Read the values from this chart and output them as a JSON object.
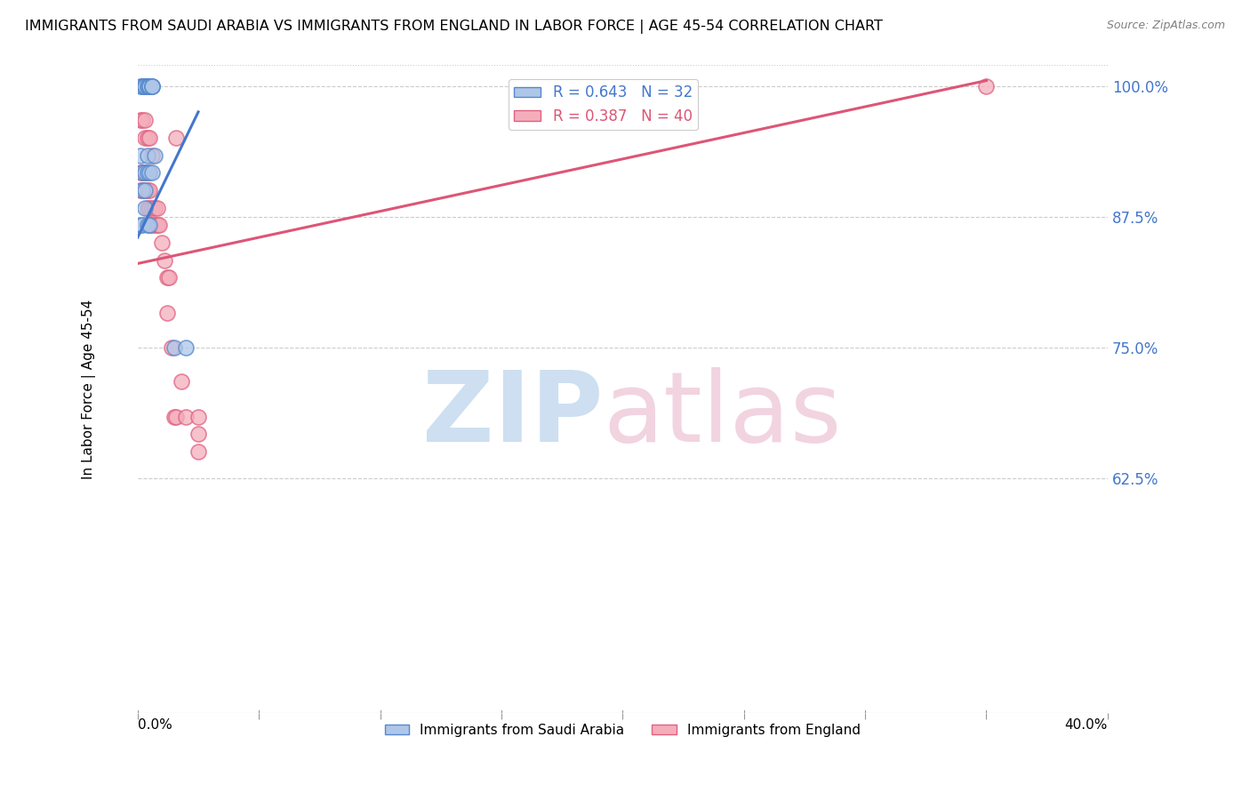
{
  "title": "IMMIGRANTS FROM SAUDI ARABIA VS IMMIGRANTS FROM ENGLAND IN LABOR FORCE | AGE 45-54 CORRELATION CHART",
  "source": "Source: ZipAtlas.com",
  "ylabel": "In Labor Force | Age 45-54",
  "legend_R_blue": "0.643",
  "legend_N_blue": "32",
  "legend_R_pink": "0.387",
  "legend_N_pink": "40",
  "blue_color": "#AEC6E8",
  "pink_color": "#F4AEBB",
  "blue_edge_color": "#5588CC",
  "pink_edge_color": "#E06080",
  "blue_line_color": "#4477CC",
  "pink_line_color": "#DD5577",
  "watermark_zip_color": "#C8DCF0",
  "watermark_atlas_color": "#F0D0DC",
  "blue_scatter": [
    [
      0.001,
      1.0
    ],
    [
      0.002,
      1.0
    ],
    [
      0.002,
      1.0
    ],
    [
      0.003,
      1.0
    ],
    [
      0.003,
      1.0
    ],
    [
      0.003,
      1.0
    ],
    [
      0.004,
      1.0
    ],
    [
      0.004,
      1.0
    ],
    [
      0.005,
      1.0
    ],
    [
      0.005,
      1.0
    ],
    [
      0.005,
      1.0
    ],
    [
      0.005,
      1.0
    ],
    [
      0.006,
      1.0
    ],
    [
      0.006,
      1.0
    ],
    [
      0.006,
      1.0
    ],
    [
      0.001,
      0.933
    ],
    [
      0.002,
      0.917
    ],
    [
      0.002,
      0.9
    ],
    [
      0.003,
      0.917
    ],
    [
      0.003,
      0.9
    ],
    [
      0.004,
      0.933
    ],
    [
      0.004,
      0.917
    ],
    [
      0.005,
      0.917
    ],
    [
      0.006,
      0.917
    ],
    [
      0.007,
      0.933
    ],
    [
      0.001,
      0.867
    ],
    [
      0.002,
      0.867
    ],
    [
      0.003,
      0.883
    ],
    [
      0.004,
      0.867
    ],
    [
      0.005,
      0.867
    ],
    [
      0.015,
      0.75
    ],
    [
      0.02,
      0.75
    ]
  ],
  "pink_scatter": [
    [
      0.001,
      0.967
    ],
    [
      0.002,
      0.967
    ],
    [
      0.003,
      0.967
    ],
    [
      0.003,
      0.95
    ],
    [
      0.004,
      0.95
    ],
    [
      0.005,
      0.95
    ],
    [
      0.001,
      0.917
    ],
    [
      0.002,
      0.917
    ],
    [
      0.003,
      0.917
    ],
    [
      0.001,
      0.9
    ],
    [
      0.002,
      0.9
    ],
    [
      0.003,
      0.9
    ],
    [
      0.004,
      0.9
    ],
    [
      0.005,
      0.9
    ],
    [
      0.004,
      0.883
    ],
    [
      0.005,
      0.883
    ],
    [
      0.006,
      0.883
    ],
    [
      0.007,
      0.883
    ],
    [
      0.008,
      0.883
    ],
    [
      0.005,
      0.867
    ],
    [
      0.006,
      0.867
    ],
    [
      0.007,
      0.867
    ],
    [
      0.008,
      0.867
    ],
    [
      0.009,
      0.867
    ],
    [
      0.01,
      0.85
    ],
    [
      0.011,
      0.833
    ],
    [
      0.012,
      0.817
    ],
    [
      0.013,
      0.817
    ],
    [
      0.012,
      0.783
    ],
    [
      0.014,
      0.75
    ],
    [
      0.015,
      0.683
    ],
    [
      0.016,
      0.683
    ],
    [
      0.018,
      0.717
    ],
    [
      0.02,
      0.683
    ],
    [
      0.006,
      0.933
    ],
    [
      0.025,
      0.667
    ],
    [
      0.025,
      0.65
    ],
    [
      0.016,
      0.95
    ],
    [
      0.025,
      0.683
    ],
    [
      0.35,
      1.0
    ]
  ],
  "blue_line_pts": [
    [
      0.0,
      0.855
    ],
    [
      0.025,
      0.975
    ]
  ],
  "pink_line_pts": [
    [
      0.0,
      0.83
    ],
    [
      0.35,
      1.005
    ]
  ],
  "xlim": [
    0.0,
    0.4
  ],
  "ylim": [
    0.4,
    1.02
  ],
  "ytick_positions": [
    0.625,
    0.75,
    0.875,
    1.0
  ],
  "ytick_labels": [
    "62.5%",
    "75.0%",
    "87.5%",
    "100.0%"
  ],
  "xtick_positions": [
    0.0,
    0.05,
    0.1,
    0.15,
    0.2,
    0.25,
    0.3,
    0.35,
    0.4
  ],
  "background_color": "#FFFFFF",
  "grid_color": "#CCCCCC",
  "right_axis_color": "#4477CC"
}
